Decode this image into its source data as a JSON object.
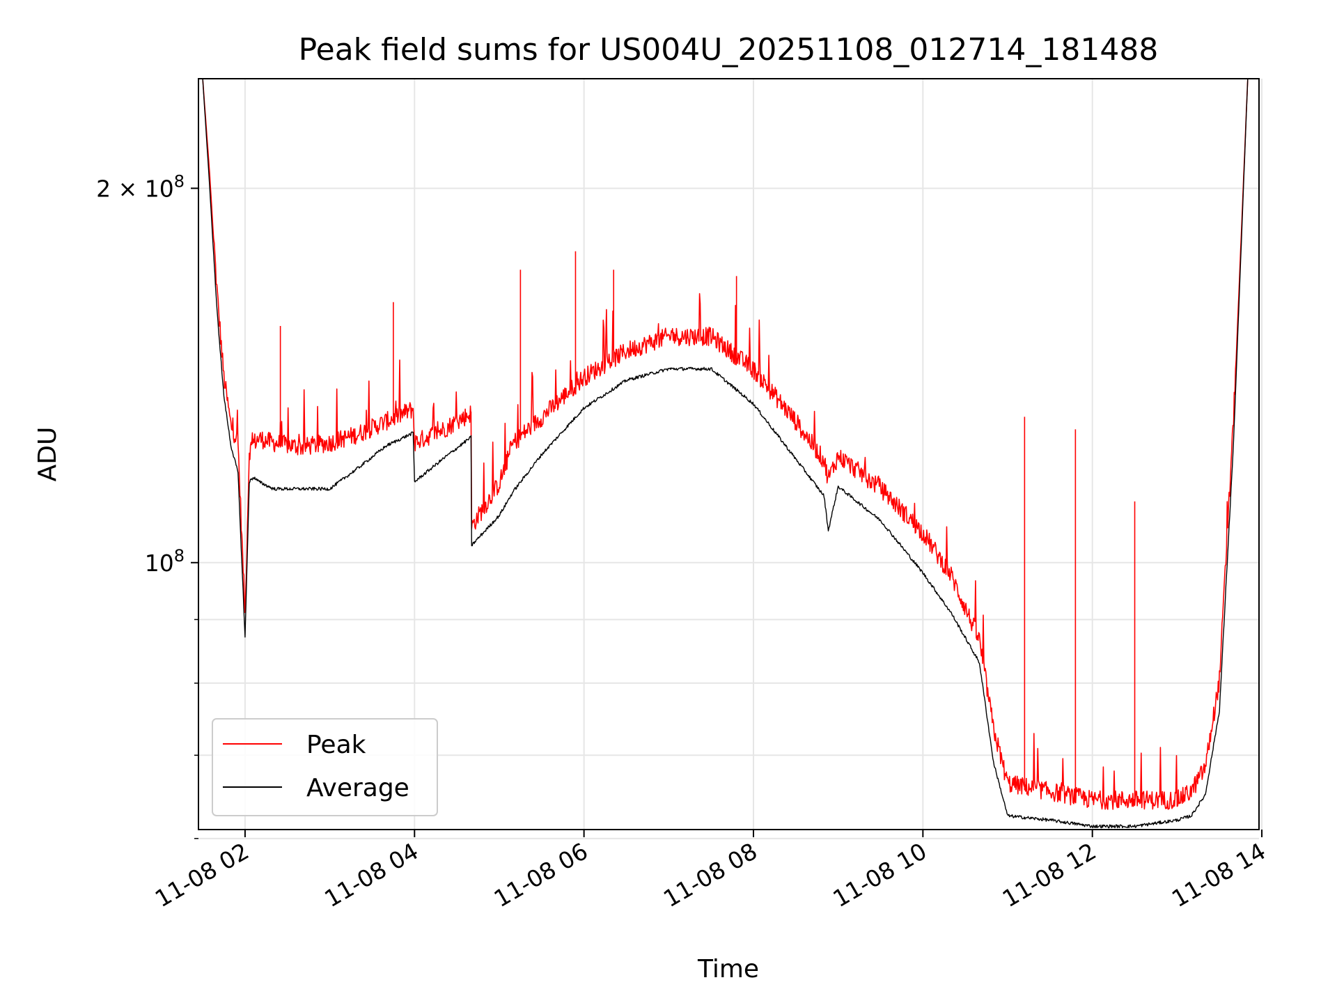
{
  "chart_data": {
    "type": "line",
    "title": "Peak field sums for US004U_20251108_012714_181488",
    "xlabel": "Time",
    "ylabel": "ADU",
    "yscale": "log",
    "grid": true,
    "legend_position": "lower-left",
    "xlim": [
      "11-08 01:27",
      "11-08 13:58"
    ],
    "ylim": [
      61000000,
      245000000
    ],
    "x_ticks": [
      "11-08 02",
      "11-08 04",
      "11-08 06",
      "11-08 08",
      "11-08 10",
      "11-08 12",
      "11-08 14"
    ],
    "y_tick_labels": [
      {
        "label_base": "2 × 10",
        "label_exp": "8",
        "value": 200000000
      },
      {
        "label_base": "10",
        "label_exp": "8",
        "value": 100000000
      }
    ],
    "y_minor_ticks": [
      60000000,
      70000000,
      80000000,
      90000000
    ],
    "series": [
      {
        "name": "Peak",
        "color": "#ff0000",
        "x": [
          "11-08 01:30",
          "11-08 01:35",
          "11-08 01:40",
          "11-08 01:45",
          "11-08 01:50",
          "11-08 01:55",
          "11-08 02:00",
          "11-08 02:03",
          "11-08 02:06",
          "11-08 02:10",
          "11-08 02:20",
          "11-08 02:40",
          "11-08 03:00",
          "11-08 03:20",
          "11-08 03:40",
          "11-08 03:59",
          "11-08 04:00",
          "11-08 04:20",
          "11-08 04:40",
          "11-08 04:40",
          "11-08 05:00",
          "11-08 05:10",
          "11-08 05:30",
          "11-08 06:00",
          "11-08 06:30",
          "11-08 07:00",
          "11-08 07:30",
          "11-08 08:00",
          "11-08 08:30",
          "11-08 08:50",
          "11-08 08:53",
          "11-08 09:00",
          "11-08 09:30",
          "11-08 10:00",
          "11-08 10:20",
          "11-08 10:40",
          "11-08 10:50",
          "11-08 11:00",
          "11-08 11:30",
          "11-08 12:00",
          "11-08 12:30",
          "11-08 13:00",
          "11-08 13:10",
          "11-08 13:20",
          "11-08 13:30",
          "11-08 13:40",
          "11-08 13:50"
        ],
        "values": [
          245000000,
          205000000,
          165000000,
          140000000,
          128000000,
          124000000,
          90000000,
          122000000,
          124000000,
          125000000,
          124000000,
          123000000,
          124000000,
          126000000,
          129000000,
          132000000,
          124000000,
          127000000,
          131000000,
          106000000,
          115000000,
          124000000,
          130000000,
          140000000,
          147000000,
          151000000,
          151000000,
          142000000,
          129000000,
          120000000,
          116000000,
          121000000,
          114000000,
          105000000,
          97000000,
          86000000,
          73000000,
          66000000,
          65000000,
          64000000,
          64000000,
          64000000,
          65000000,
          68000000,
          80000000,
          130000000,
          245000000
        ],
        "notable_spikes": [
          {
            "x": "11-08 02:25",
            "y": 155000000
          },
          {
            "x": "11-08 03:45",
            "y": 162000000
          },
          {
            "x": "11-08 05:15",
            "y": 172000000
          },
          {
            "x": "11-08 05:54",
            "y": 178000000
          },
          {
            "x": "11-08 06:21",
            "y": 172000000
          },
          {
            "x": "11-08 07:48",
            "y": 170000000
          },
          {
            "x": "11-08 11:12",
            "y": 131000000
          },
          {
            "x": "11-08 11:48",
            "y": 128000000
          },
          {
            "x": "11-08 12:30",
            "y": 112000000
          }
        ]
      },
      {
        "name": "Average",
        "color": "#000000",
        "x": [
          "11-08 01:30",
          "11-08 01:35",
          "11-08 01:40",
          "11-08 01:45",
          "11-08 01:50",
          "11-08 01:55",
          "11-08 02:00",
          "11-08 02:03",
          "11-08 02:06",
          "11-08 02:10",
          "11-08 02:20",
          "11-08 02:40",
          "11-08 03:00",
          "11-08 03:20",
          "11-08 03:40",
          "11-08 03:59",
          "11-08 04:00",
          "11-08 04:20",
          "11-08 04:40",
          "11-08 04:40",
          "11-08 05:00",
          "11-08 05:10",
          "11-08 05:30",
          "11-08 06:00",
          "11-08 06:30",
          "11-08 07:00",
          "11-08 07:30",
          "11-08 08:00",
          "11-08 08:30",
          "11-08 08:50",
          "11-08 08:53",
          "11-08 09:00",
          "11-08 09:30",
          "11-08 10:00",
          "11-08 10:20",
          "11-08 10:40",
          "11-08 10:50",
          "11-08 11:00",
          "11-08 11:30",
          "11-08 12:00",
          "11-08 12:30",
          "11-08 13:00",
          "11-08 13:10",
          "11-08 13:20",
          "11-08 13:30",
          "11-08 13:40",
          "11-08 13:50"
        ],
        "values": [
          245000000,
          200000000,
          160000000,
          136000000,
          124000000,
          118000000,
          87000000,
          116000000,
          117000000,
          116000000,
          114500000,
          114500000,
          114500000,
          119000000,
          124000000,
          127000000,
          116000000,
          121000000,
          126000000,
          103000000,
          109000000,
          114000000,
          122000000,
          133000000,
          140000000,
          143000000,
          143000000,
          134000000,
          121000000,
          113000000,
          106000000,
          115000000,
          108000000,
          98000000,
          91000000,
          83000000,
          69000000,
          62500000,
          62000000,
          61300000,
          61300000,
          62000000,
          62500000,
          65000000,
          76000000,
          125000000,
          245000000
        ]
      }
    ]
  }
}
